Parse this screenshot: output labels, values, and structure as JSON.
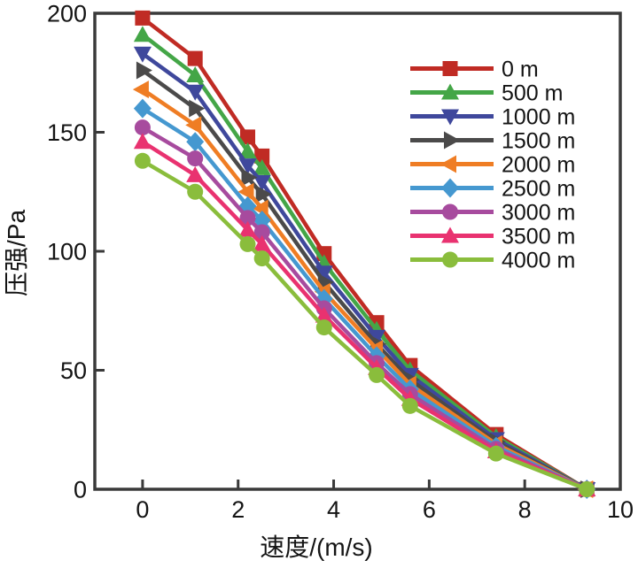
{
  "figure": {
    "background": "#ffffff",
    "axis_color": "#3a3a3a",
    "text_color": "#141414"
  },
  "chart_data": {
    "type": "line",
    "title": "",
    "xlabel": "速度/(m/s)",
    "ylabel": "压强/Pa",
    "xlim": [
      -1,
      10
    ],
    "ylim": [
      0,
      200
    ],
    "x_ticks": [
      0,
      2,
      4,
      6,
      8,
      10
    ],
    "y_ticks": [
      0,
      50,
      100,
      150,
      200
    ],
    "grid": false,
    "legend_position": "top-right",
    "x": [
      0,
      1.1,
      2.2,
      2.5,
      3.8,
      4.9,
      5.6,
      7.4,
      9.3
    ],
    "series": [
      {
        "name": "0 m",
        "marker": "square",
        "color": "#c02b24",
        "values": [
          198,
          181,
          148,
          140,
          99,
          70,
          52,
          23,
          0
        ]
      },
      {
        "name": "500 m",
        "marker": "triangle-up",
        "color": "#44a647",
        "values": [
          191,
          174,
          142,
          135,
          95,
          67,
          50,
          22,
          0
        ]
      },
      {
        "name": "1000 m",
        "marker": "triangle-down",
        "color": "#3f489c",
        "values": [
          183,
          167,
          136,
          129,
          91,
          64,
          48,
          21,
          0
        ]
      },
      {
        "name": "1500 m",
        "marker": "triangle-right",
        "color": "#4b4a4a",
        "values": [
          176,
          160,
          131,
          124,
          87,
          61,
          46,
          20,
          0
        ]
      },
      {
        "name": "2000 m",
        "marker": "triangle-left",
        "color": "#ef7d24",
        "values": [
          168,
          153,
          125,
          118,
          83,
          59,
          44,
          19,
          0
        ]
      },
      {
        "name": "2500 m",
        "marker": "diamond",
        "color": "#4598d0",
        "values": [
          160,
          146,
          119,
          113,
          80,
          56,
          42,
          18,
          0
        ]
      },
      {
        "name": "3000 m",
        "marker": "circle",
        "color": "#a74b9e",
        "values": [
          152,
          139,
          114,
          108,
          76,
          53,
          40,
          17,
          0
        ]
      },
      {
        "name": "3500 m",
        "marker": "triangle-up",
        "color": "#e93270",
        "values": [
          146,
          132,
          109,
          103,
          73,
          51,
          38,
          16,
          0
        ]
      },
      {
        "name": "4000 m",
        "marker": "circle",
        "color": "#8abd3c",
        "values": [
          138,
          125,
          103,
          97,
          68,
          48,
          35,
          15,
          0
        ]
      }
    ]
  }
}
